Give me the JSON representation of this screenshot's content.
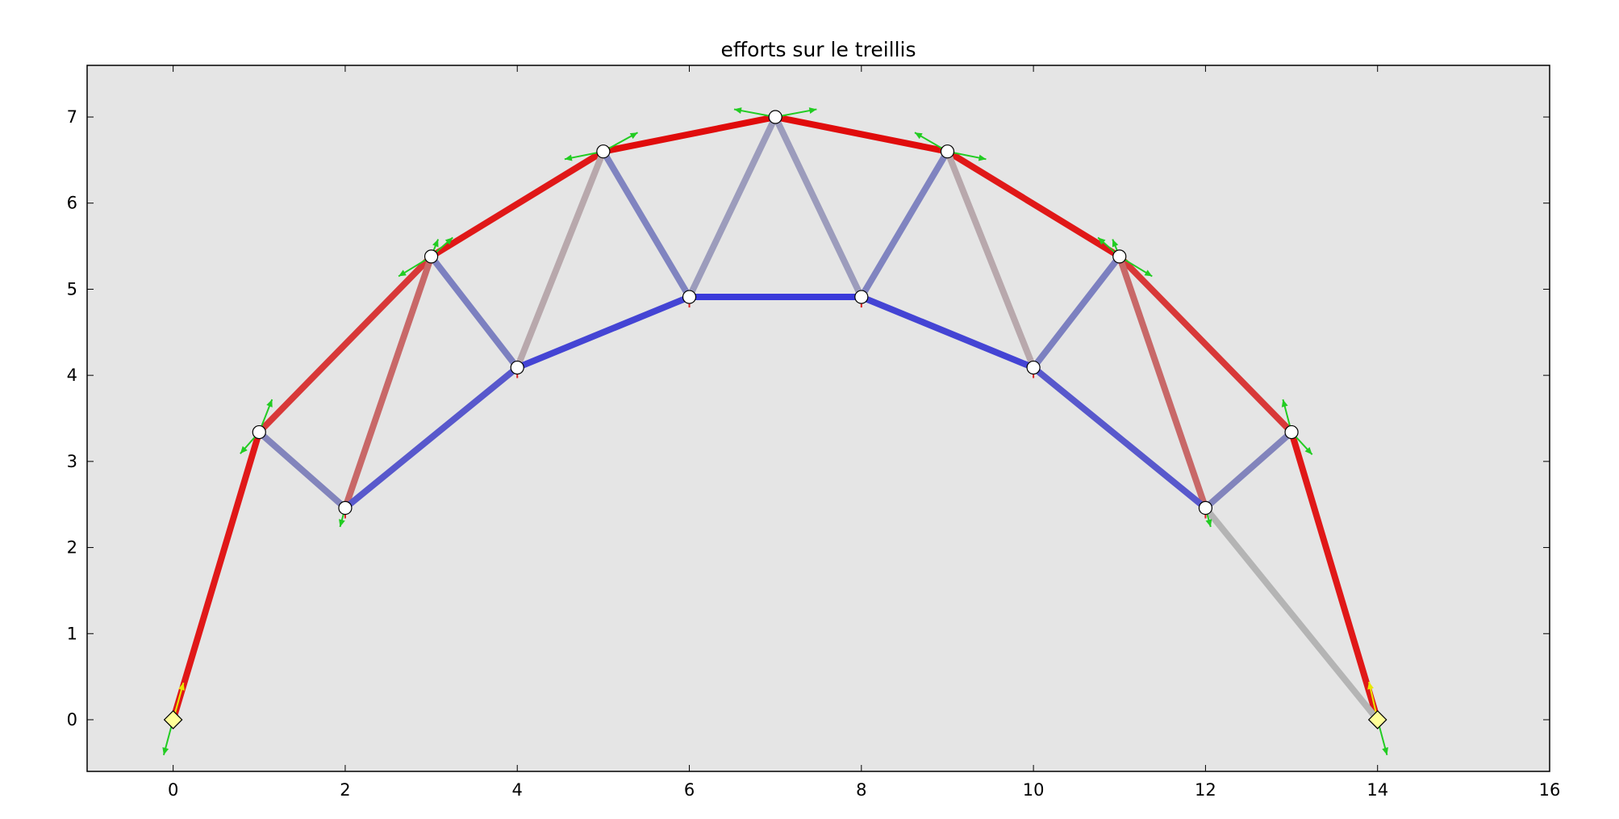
{
  "chart_data": {
    "type": "scatter",
    "title": "efforts sur le treillis",
    "xlabel": "",
    "ylabel": "",
    "xlim": [
      -1,
      16
    ],
    "ylim": [
      -0.6,
      7.6
    ],
    "xticks": [
      "0",
      "2",
      "4",
      "6",
      "8",
      "10",
      "12",
      "14",
      "16"
    ],
    "yticks": [
      "0",
      "1",
      "2",
      "3",
      "4",
      "5",
      "6",
      "7"
    ],
    "grid": false,
    "background_color": "#e5e5e5",
    "nodes": [
      {
        "id": "n0",
        "x": 0,
        "y": 0,
        "kind": "support"
      },
      {
        "id": "n1",
        "x": 1,
        "y": 3.34,
        "kind": "node"
      },
      {
        "id": "n2",
        "x": 2,
        "y": 2.46,
        "kind": "node"
      },
      {
        "id": "n3",
        "x": 3,
        "y": 5.38,
        "kind": "node"
      },
      {
        "id": "n4",
        "x": 4,
        "y": 4.09,
        "kind": "node"
      },
      {
        "id": "n5",
        "x": 5,
        "y": 6.6,
        "kind": "node"
      },
      {
        "id": "n6",
        "x": 6,
        "y": 4.91,
        "kind": "node"
      },
      {
        "id": "n7",
        "x": 7,
        "y": 7.0,
        "kind": "node"
      },
      {
        "id": "n8",
        "x": 8,
        "y": 4.91,
        "kind": "node"
      },
      {
        "id": "n9",
        "x": 9,
        "y": 6.6,
        "kind": "node"
      },
      {
        "id": "n10",
        "x": 10,
        "y": 4.09,
        "kind": "node"
      },
      {
        "id": "n11",
        "x": 11,
        "y": 5.38,
        "kind": "node"
      },
      {
        "id": "n12",
        "x": 12,
        "y": 2.46,
        "kind": "node"
      },
      {
        "id": "n13",
        "x": 13,
        "y": 3.34,
        "kind": "node"
      },
      {
        "id": "n14",
        "x": 14,
        "y": 0,
        "kind": "support"
      }
    ],
    "members": [
      {
        "from": 0,
        "to": 1,
        "color": "#e01818"
      },
      {
        "from": 1,
        "to": 3,
        "color": "#d83838"
      },
      {
        "from": 3,
        "to": 5,
        "color": "#e01818"
      },
      {
        "from": 5,
        "to": 7,
        "color": "#e00c0c"
      },
      {
        "from": 7,
        "to": 9,
        "color": "#e00c0c"
      },
      {
        "from": 9,
        "to": 11,
        "color": "#e01818"
      },
      {
        "from": 11,
        "to": 13,
        "color": "#d83838"
      },
      {
        "from": 13,
        "to": 14,
        "color": "#e01818"
      },
      {
        "from": 1,
        "to": 2,
        "color": "#8284bc"
      },
      {
        "from": 2,
        "to": 3,
        "color": "#c86868"
      },
      {
        "from": 3,
        "to": 4,
        "color": "#7c80c0"
      },
      {
        "from": 4,
        "to": 5,
        "color": "#b8a8ac"
      },
      {
        "from": 5,
        "to": 6,
        "color": "#8084c0"
      },
      {
        "from": 6,
        "to": 7,
        "color": "#9c9cbc"
      },
      {
        "from": 7,
        "to": 8,
        "color": "#9c9cbc"
      },
      {
        "from": 8,
        "to": 9,
        "color": "#8084c0"
      },
      {
        "from": 9,
        "to": 10,
        "color": "#b8a8ac"
      },
      {
        "from": 10,
        "to": 11,
        "color": "#7c80c0"
      },
      {
        "from": 11,
        "to": 12,
        "color": "#c86868"
      },
      {
        "from": 12,
        "to": 13,
        "color": "#8284bc"
      },
      {
        "from": 12,
        "to": 14,
        "color": "#b4b4b4"
      },
      {
        "from": 2,
        "to": 4,
        "color": "#5858cc"
      },
      {
        "from": 4,
        "to": 6,
        "color": "#4444d4"
      },
      {
        "from": 6,
        "to": 8,
        "color": "#3a3ada"
      },
      {
        "from": 8,
        "to": 10,
        "color": "#4444d4"
      },
      {
        "from": 10,
        "to": 12,
        "color": "#5858cc"
      }
    ],
    "force_arrows": [
      {
        "node": 1,
        "dx": 0.15,
        "dy": 0.38
      },
      {
        "node": 1,
        "dx": -0.22,
        "dy": -0.25
      },
      {
        "node": 2,
        "dx": -0.06,
        "dy": -0.22
      },
      {
        "node": 3,
        "dx": 0.08,
        "dy": 0.2
      },
      {
        "node": 3,
        "dx": 0.25,
        "dy": 0.22
      },
      {
        "node": 3,
        "dx": -0.38,
        "dy": -0.23
      },
      {
        "node": 5,
        "dx": 0.4,
        "dy": 0.22
      },
      {
        "node": 5,
        "dx": -0.45,
        "dy": -0.09
      },
      {
        "node": 7,
        "dx": 0.48,
        "dy": 0.09
      },
      {
        "node": 7,
        "dx": -0.48,
        "dy": 0.09
      },
      {
        "node": 9,
        "dx": -0.38,
        "dy": 0.22
      },
      {
        "node": 9,
        "dx": 0.45,
        "dy": -0.09
      },
      {
        "node": 11,
        "dx": -0.08,
        "dy": 0.2
      },
      {
        "node": 11,
        "dx": -0.25,
        "dy": 0.22
      },
      {
        "node": 11,
        "dx": 0.38,
        "dy": -0.23
      },
      {
        "node": 12,
        "dx": 0.06,
        "dy": -0.22
      },
      {
        "node": 13,
        "dx": -0.1,
        "dy": 0.38
      },
      {
        "node": 13,
        "dx": 0.24,
        "dy": -0.26
      },
      {
        "node": 0,
        "dx": -0.11,
        "dy": -0.41
      },
      {
        "node": 14,
        "dx": 0.11,
        "dy": -0.41
      }
    ],
    "reaction_arrows": [
      {
        "node": 0,
        "dx": 0.12,
        "dy": 0.43
      },
      {
        "node": 14,
        "dx": -0.1,
        "dy": 0.44
      }
    ],
    "colors": {
      "force_arrow": "#22cc22",
      "reaction_arrow": "#e8e800",
      "node_fill": "#ffffff",
      "support_fill": "#ffff99"
    }
  }
}
